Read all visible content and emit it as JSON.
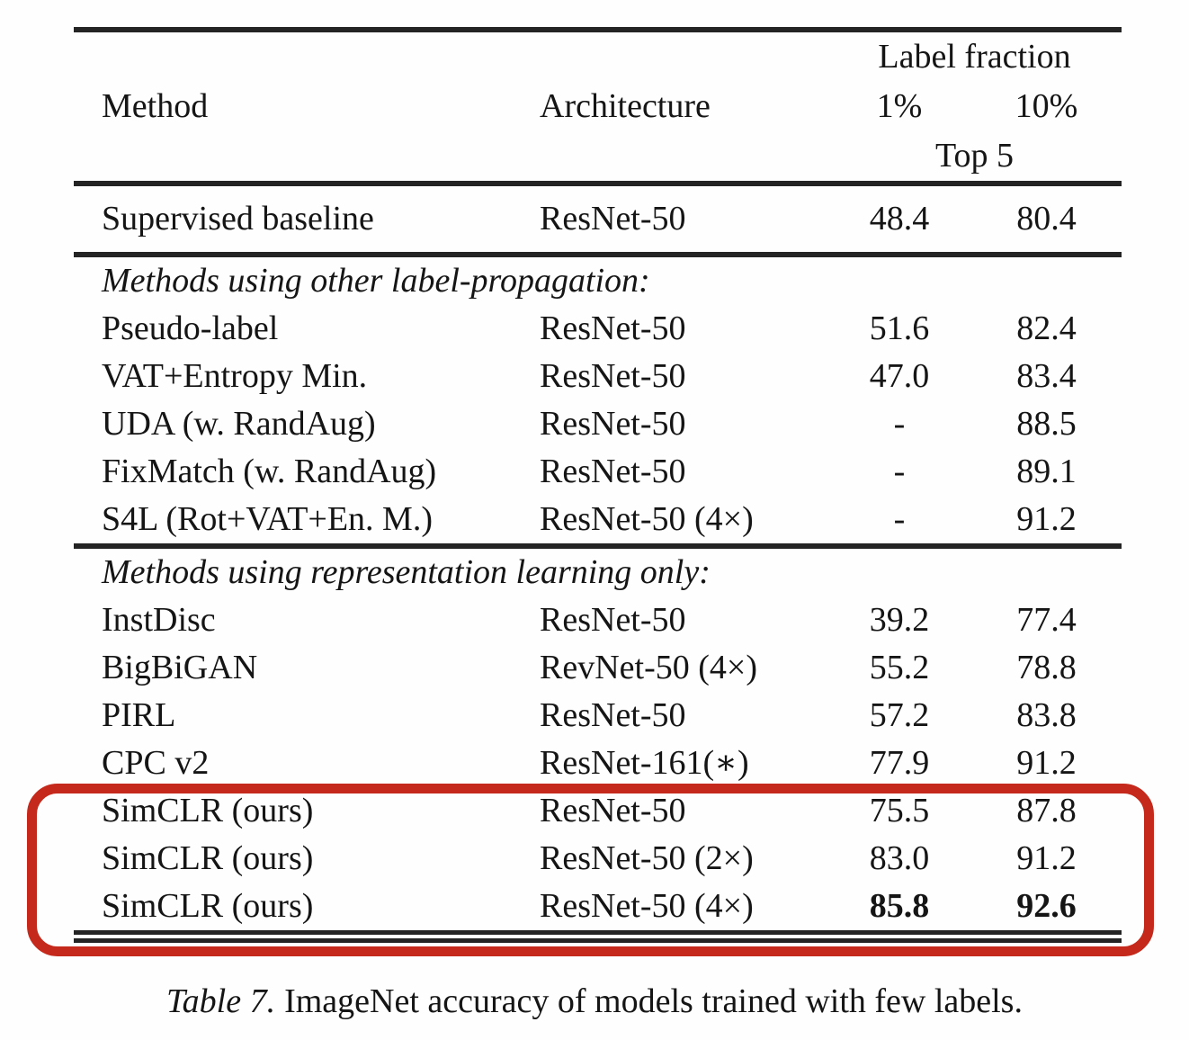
{
  "table": {
    "header": {
      "method": "Method",
      "architecture": "Architecture",
      "label_fraction": "Label fraction",
      "pct1": "1%",
      "pct10": "10%",
      "top5": "Top 5"
    },
    "supervised": {
      "method": "Supervised baseline",
      "arch": "ResNet-50",
      "top1": "48.4",
      "top10": "80.4"
    },
    "sections": [
      {
        "title": "Methods using other label-propagation:",
        "rows": [
          {
            "method": "Pseudo-label",
            "arch": "ResNet-50",
            "top1": "51.6",
            "top10": "82.4"
          },
          {
            "method": "VAT+Entropy Min.",
            "arch": "ResNet-50",
            "top1": "47.0",
            "top10": "83.4"
          },
          {
            "method": "UDA (w. RandAug)",
            "arch": "ResNet-50",
            "top1": "-",
            "top10": "88.5"
          },
          {
            "method": "FixMatch (w. RandAug)",
            "arch": "ResNet-50",
            "top1": "-",
            "top10": "89.1"
          },
          {
            "method": "S4L (Rot+VAT+En. M.)",
            "arch": "ResNet-50 (4×)",
            "top1": "-",
            "top10": "91.2"
          }
        ]
      },
      {
        "title": "Methods using representation learning only:",
        "rows": [
          {
            "method": "InstDisc",
            "arch": "ResNet-50",
            "top1": "39.2",
            "top10": "77.4"
          },
          {
            "method": "BigBiGAN",
            "arch": "RevNet-50 (4×)",
            "top1": "55.2",
            "top10": "78.8"
          },
          {
            "method": "PIRL",
            "arch": "ResNet-50",
            "top1": "57.2",
            "top10": "83.8"
          },
          {
            "method": "CPC v2",
            "arch": "ResNet-161(∗)",
            "top1": "77.9",
            "top10": "91.2"
          },
          {
            "method": "SimCLR (ours)",
            "arch": "ResNet-50",
            "top1": "75.5",
            "top10": "87.8"
          },
          {
            "method": "SimCLR (ours)",
            "arch": "ResNet-50 (2×)",
            "top1": "83.0",
            "top10": "91.2"
          },
          {
            "method": "SimCLR (ours)",
            "arch": "ResNet-50 (4×)",
            "top1": "85.8",
            "top10": "92.6"
          }
        ]
      }
    ]
  },
  "caption": {
    "label": "Table 7.",
    "text": "ImageNet accuracy of models trained with few labels."
  },
  "annotation": {
    "description": "red rounded rectangle highlighting the three SimCLR rows",
    "color": "#c5291b"
  },
  "colors": {
    "background": "#fefefe",
    "text": "#151515",
    "rule": "#242424"
  }
}
